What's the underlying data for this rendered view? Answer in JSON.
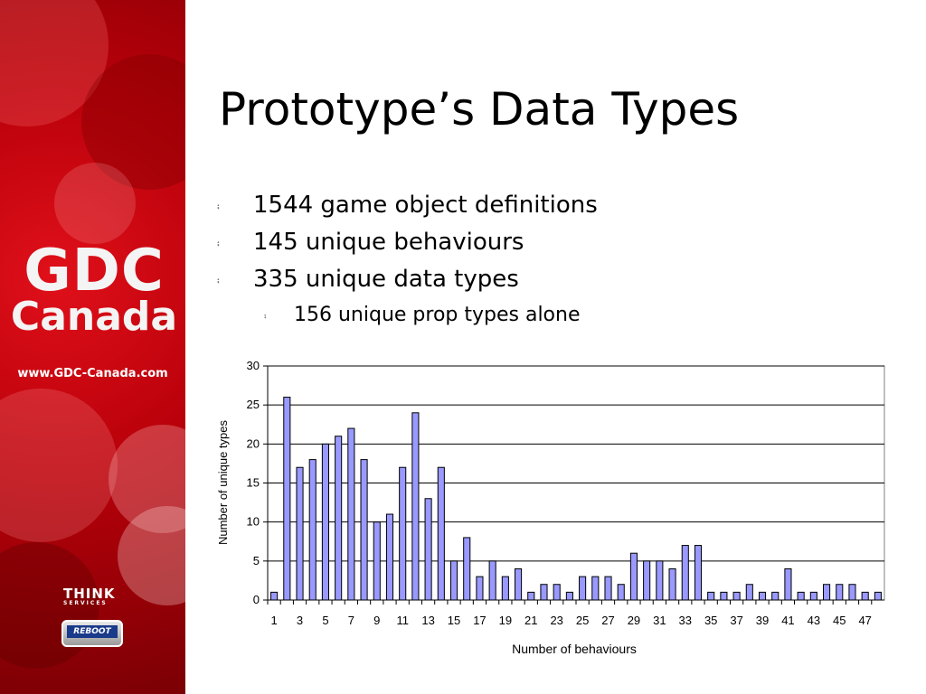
{
  "slide": {
    "title": "Prototype’s Data Types",
    "bullets": [
      {
        "text": "1544 game object definitions",
        "level": 1
      },
      {
        "text": "145 unique behaviours",
        "level": 1
      },
      {
        "text": "335 unique data types",
        "level": 1
      },
      {
        "text": "156 unique prop types alone",
        "level": 2
      }
    ]
  },
  "sidebar": {
    "logo_line1": "GDC",
    "logo_line2": "Canada",
    "url": "www.GDC-Canada.com",
    "sponsor1": "THINK",
    "sponsor1_sub": "SERVICES",
    "sponsor2": "REBOOT",
    "accent_color": "#c8000c"
  },
  "chart_data": {
    "type": "bar",
    "xlabel": "Number of behaviours",
    "ylabel": "Number of unique types",
    "ylim": [
      0,
      30
    ],
    "yticks": [
      0,
      5,
      10,
      15,
      20,
      25,
      30
    ],
    "grid": true,
    "bar_color": "#9999ff",
    "categories": [
      1,
      2,
      3,
      4,
      5,
      6,
      7,
      8,
      9,
      10,
      11,
      12,
      13,
      14,
      15,
      16,
      17,
      18,
      19,
      20,
      21,
      22,
      23,
      24,
      25,
      26,
      27,
      28,
      29,
      30,
      31,
      32,
      33,
      34,
      35,
      36,
      37,
      38,
      39,
      40,
      41,
      42,
      43,
      44,
      45,
      46,
      47,
      48
    ],
    "tick_labels": [
      "1",
      "3",
      "5",
      "7",
      "9",
      "11",
      "13",
      "15",
      "17",
      "19",
      "21",
      "23",
      "25",
      "27",
      "29",
      "31",
      "33",
      "35",
      "37",
      "39",
      "41",
      "43",
      "45",
      "47"
    ],
    "values": [
      1,
      26,
      17,
      18,
      20,
      21,
      22,
      18,
      10,
      11,
      17,
      24,
      13,
      17,
      5,
      8,
      3,
      5,
      3,
      4,
      1,
      2,
      2,
      1,
      3,
      3,
      3,
      2,
      6,
      5,
      5,
      4,
      7,
      7,
      1,
      1,
      1,
      2,
      1,
      1,
      4,
      1,
      1,
      2,
      2,
      2,
      1,
      1
    ]
  }
}
